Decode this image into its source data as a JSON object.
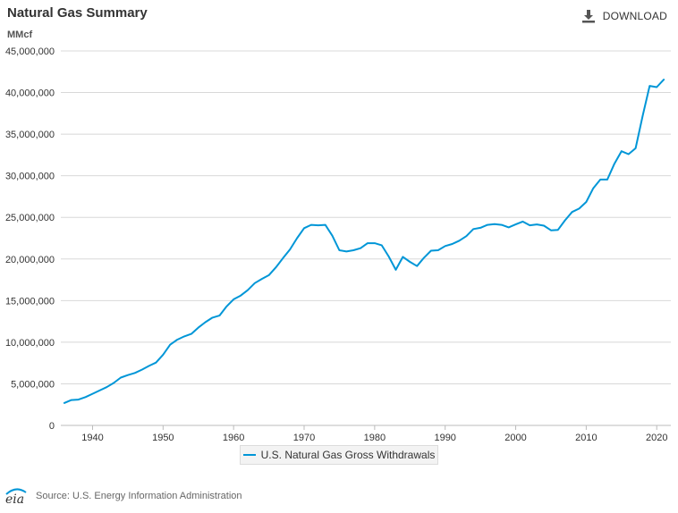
{
  "header": {
    "title": "Natural Gas Summary",
    "download_label": "DOWNLOAD",
    "download_icon": "download-icon"
  },
  "footer": {
    "source_text": "Source: U.S. Energy Information Administration",
    "logo_icon": "eia-logo-icon",
    "logo_text": "eia"
  },
  "colors": {
    "series": "#0096d7",
    "grid": "#d8d8d8",
    "text": "#333333"
  },
  "chart_data": {
    "type": "line",
    "title": "Natural Gas Summary",
    "unit_label": "MMcf",
    "ylim": [
      0,
      45000000
    ],
    "xlim": [
      1936,
      2021
    ],
    "yticks": [
      0,
      5000000,
      10000000,
      15000000,
      20000000,
      25000000,
      30000000,
      35000000,
      40000000,
      45000000
    ],
    "ytick_labels": [
      "0",
      "5,000,000",
      "10,000,000",
      "15,000,000",
      "20,000,000",
      "25,000,000",
      "30,000,000",
      "35,000,000",
      "40,000,000",
      "45,000,000"
    ],
    "xticks": [
      1940,
      1950,
      1960,
      1970,
      1980,
      1990,
      2000,
      2010,
      2020
    ],
    "xtick_labels": [
      "1940",
      "1950",
      "1960",
      "1970",
      "1980",
      "1990",
      "2000",
      "2010",
      "2020"
    ],
    "grid": "horizontal",
    "legend_position": "bottom-center",
    "series": [
      {
        "name": "U.S. Natural Gas Gross Withdrawals",
        "color": "#0096d7",
        "x": [
          1936,
          1937,
          1938,
          1939,
          1940,
          1941,
          1942,
          1943,
          1944,
          1945,
          1946,
          1947,
          1948,
          1949,
          1950,
          1951,
          1952,
          1953,
          1954,
          1955,
          1956,
          1957,
          1958,
          1959,
          1960,
          1961,
          1962,
          1963,
          1964,
          1965,
          1966,
          1967,
          1968,
          1969,
          1970,
          1971,
          1972,
          1973,
          1974,
          1975,
          1976,
          1977,
          1978,
          1979,
          1980,
          1981,
          1982,
          1983,
          1984,
          1985,
          1986,
          1987,
          1988,
          1989,
          1990,
          1991,
          1992,
          1993,
          1994,
          1995,
          1996,
          1997,
          1998,
          1999,
          2000,
          2001,
          2002,
          2003,
          2004,
          2005,
          2006,
          2007,
          2008,
          2009,
          2010,
          2011,
          2012,
          2013,
          2014,
          2015,
          2016,
          2017,
          2018,
          2019,
          2020,
          2021
        ],
        "values": [
          2700000,
          3050000,
          3100000,
          3400000,
          3800000,
          4200000,
          4600000,
          5100000,
          5750000,
          6050000,
          6300000,
          6700000,
          7150000,
          7550000,
          8500000,
          9700000,
          10300000,
          10700000,
          11000000,
          11750000,
          12400000,
          12950000,
          13200000,
          14300000,
          15150000,
          15600000,
          16250000,
          17100000,
          17600000,
          18050000,
          19000000,
          20100000,
          21150000,
          22500000,
          23700000,
          24100000,
          24050000,
          24100000,
          22800000,
          21050000,
          20900000,
          21050000,
          21300000,
          21900000,
          21900000,
          21650000,
          20300000,
          18700000,
          20250000,
          19650000,
          19150000,
          20150000,
          21000000,
          21050000,
          21550000,
          21800000,
          22200000,
          22750000,
          23600000,
          23750000,
          24100000,
          24200000,
          24100000,
          23800000,
          24150000,
          24500000,
          24050000,
          24150000,
          24000000,
          23450000,
          23500000,
          24650000,
          25650000,
          26050000,
          26850000,
          28500000,
          29550000,
          29550000,
          31450000,
          32950000,
          32600000,
          33300000,
          37200000,
          40800000,
          40650000,
          41550000
        ]
      }
    ]
  }
}
